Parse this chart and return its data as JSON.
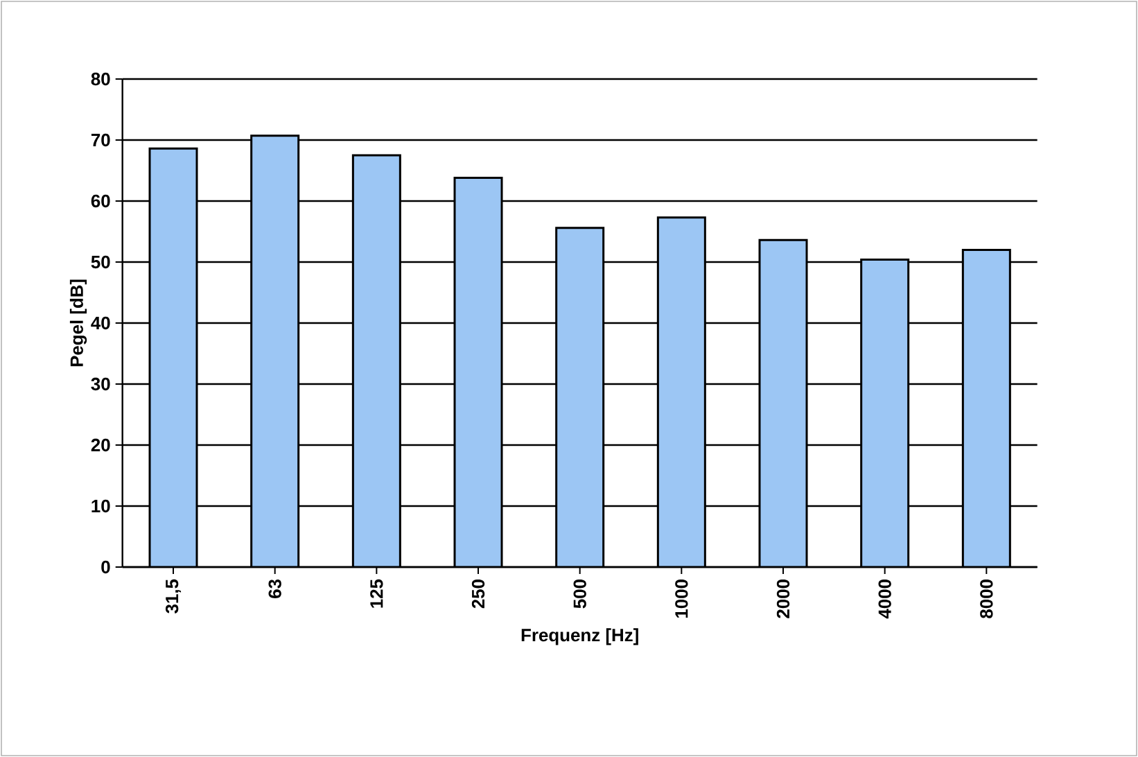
{
  "chart_data": {
    "type": "bar",
    "xlabel": "Frequenz [Hz]",
    "ylabel": "Pegel [dB]",
    "categories": [
      "31,5",
      "63",
      "125",
      "250",
      "500",
      "1000",
      "2000",
      "4000",
      "8000"
    ],
    "values": [
      68.6,
      70.7,
      67.5,
      63.8,
      55.6,
      57.3,
      53.6,
      50.4,
      52.0
    ],
    "color": "#9cc6f4",
    "ylim": [
      0,
      80
    ],
    "yticks": [
      0,
      10,
      20,
      30,
      40,
      50,
      60,
      70,
      80
    ],
    "grid": "y"
  }
}
